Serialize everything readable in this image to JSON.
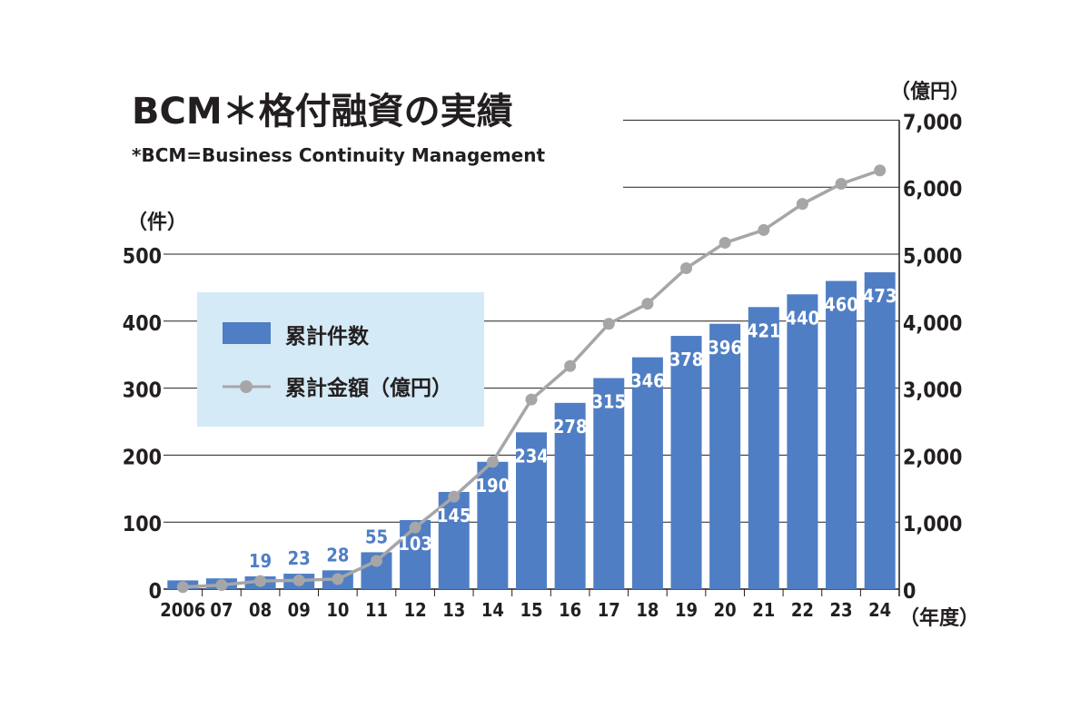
{
  "chart_data": {
    "type": "bar",
    "title": "BCM＊格付融資の実績",
    "subtitle": "*BCM=Business Continuity Management",
    "categories": [
      "2006",
      "07",
      "08",
      "09",
      "10",
      "11",
      "12",
      "13",
      "14",
      "15",
      "16",
      "17",
      "18",
      "19",
      "20",
      "21",
      "22",
      "23",
      "24"
    ],
    "series": [
      {
        "name": "累計件数",
        "type": "bar",
        "axis": "left",
        "color": "#4f7ec4",
        "values": [
          13,
          16,
          19,
          23,
          28,
          55,
          103,
          145,
          190,
          234,
          278,
          315,
          346,
          378,
          396,
          421,
          440,
          460,
          473
        ],
        "labels": [
          "",
          "",
          "19",
          "23",
          "28",
          "55",
          "103",
          "145",
          "190",
          "234",
          "278",
          "315",
          "346",
          "378",
          "396",
          "421",
          "440",
          "460",
          "473"
        ]
      },
      {
        "name": "累計金額（億円）",
        "type": "line",
        "axis": "right",
        "color": "#a6a6a8",
        "values": [
          30,
          60,
          120,
          130,
          150,
          420,
          920,
          1380,
          1900,
          2830,
          3330,
          3960,
          4260,
          4790,
          5170,
          5360,
          5750,
          6050,
          6250
        ]
      }
    ],
    "left_axis": {
      "unit": "（件）",
      "ylim": [
        0,
        500
      ],
      "ticks": [
        "0",
        "100",
        "200",
        "300",
        "400",
        "500"
      ]
    },
    "right_axis": {
      "unit": "（億円）",
      "ylim": [
        0,
        7000
      ],
      "ticks": [
        "0",
        "1,000",
        "2,000",
        "3,000",
        "4,000",
        "5,000",
        "6,000",
        "7,000"
      ]
    },
    "x_axis": {
      "unit": "（年度）"
    },
    "legend": {
      "position": "upper-left",
      "background": "#d4eaf6",
      "items": [
        "累計件数",
        "累計金額（億円）"
      ]
    },
    "grid": true
  }
}
